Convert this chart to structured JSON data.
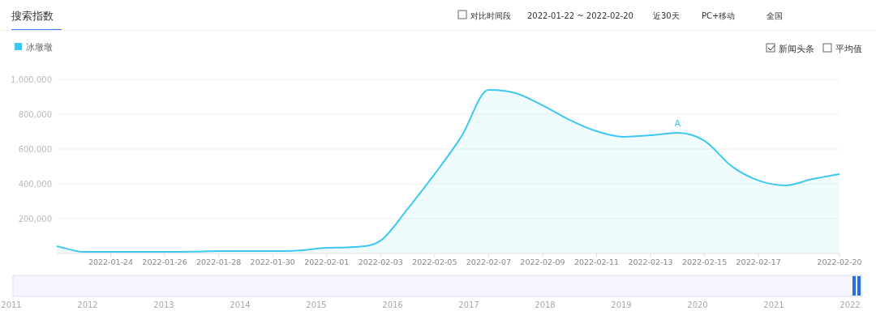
{
  "chart_data": {
    "type": "area",
    "title": "搜索指数",
    "x": [
      "2022-01-22",
      "2022-01-23",
      "2022-01-24",
      "2022-01-25",
      "2022-01-26",
      "2022-01-27",
      "2022-01-28",
      "2022-01-29",
      "2022-01-30",
      "2022-01-31",
      "2022-02-01",
      "2022-02-02",
      "2022-02-03",
      "2022-02-04",
      "2022-02-05",
      "2022-02-06",
      "2022-02-07",
      "2022-02-08",
      "2022-02-09",
      "2022-02-10",
      "2022-02-11",
      "2022-02-12",
      "2022-02-13",
      "2022-02-14",
      "2022-02-15",
      "2022-02-16",
      "2022-02-17",
      "2022-02-18",
      "2022-02-19",
      "2022-02-20"
    ],
    "series": [
      {
        "name": "冰墩墩",
        "color": "#3cc8f0",
        "values": [
          42000,
          9000,
          9000,
          9000,
          9000,
          10000,
          14000,
          14000,
          14000,
          18000,
          32000,
          37000,
          74000,
          256000,
          456000,
          674000,
          940000,
          921000,
          851000,
          767000,
          702000,
          670000,
          679000,
          693000,
          647000,
          502000,
          419000,
          391000,
          428000,
          456000
        ]
      }
    ],
    "xlim": [
      "2022-01-22",
      "2022-02-20"
    ],
    "xticks": [
      "2022-01-24",
      "2022-01-26",
      "2022-01-28",
      "2022-01-30",
      "2022-02-01",
      "2022-02-03",
      "2022-02-05",
      "2022-02-07",
      "2022-02-09",
      "2022-02-11",
      "2022-02-13",
      "2022-02-15",
      "2022-02-17",
      "2022-02-20"
    ],
    "ylim": [
      0,
      1000000
    ],
    "yticks": [
      {
        "value": 200000,
        "label": "200,000"
      },
      {
        "value": 400000,
        "label": "400,000"
      },
      {
        "value": 600000,
        "label": "600,000"
      },
      {
        "value": 800000,
        "label": "800,000"
      },
      {
        "value": 1000000,
        "label": "1,000,000"
      }
    ],
    "grid": "y",
    "legend": "top left",
    "marker": "none",
    "annotations": [
      "对比时间段",
      "2022-01-22 ~ 2022-02-20",
      "近30天",
      "PC+移动",
      "全国",
      "新闻头条",
      "平均值",
      {
        "text": "A",
        "x": "2022-02-14",
        "y": 693000
      },
      "2011",
      "2012",
      "2013",
      "2014",
      "2015",
      "2016",
      "2017",
      "2018",
      "2019",
      "2020",
      "2021",
      "2022"
    ]
  }
}
